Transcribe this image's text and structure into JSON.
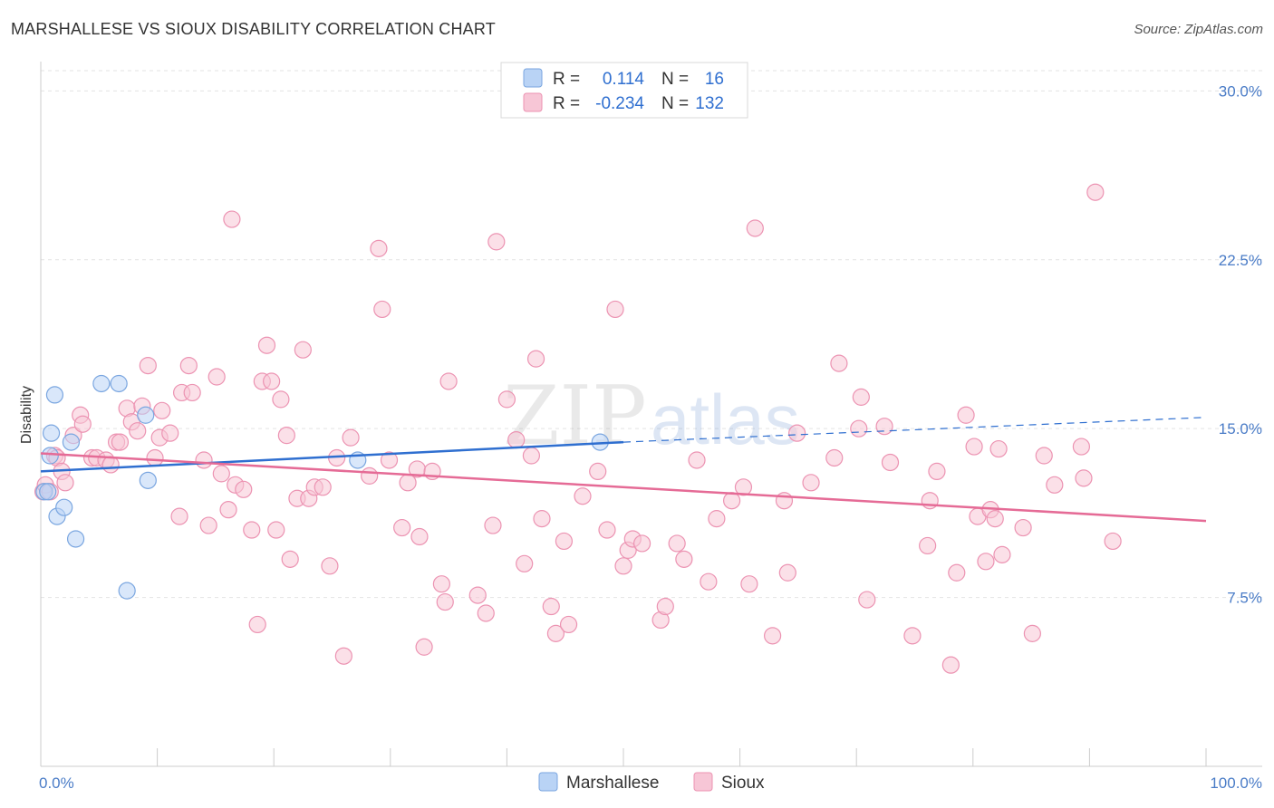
{
  "title": "MARSHALLESE VS SIOUX DISABILITY CORRELATION CHART",
  "source": "Source: ZipAtlas.com",
  "watermark": {
    "zip": "ZIP",
    "atlas": "atlas"
  },
  "colors": {
    "marshallese_fill": "#b9d3f5",
    "marshallese_stroke": "#7aa6e0",
    "marshallese_line": "#2f6fd0",
    "sioux_fill": "#f7c6d6",
    "sioux_stroke": "#ec93b2",
    "sioux_line": "#e56b96",
    "tick_label": "#4a7cc7"
  },
  "legend": {
    "rows": [
      {
        "r_label": "R =",
        "r_value": "0.114",
        "n_label": "N =",
        "n_value": "16"
      },
      {
        "r_label": "R =",
        "r_value": "-0.234",
        "n_label": "N =",
        "n_value": "132"
      }
    ]
  },
  "chart_data": {
    "type": "scatter",
    "ylabel": "Disability",
    "xlim": [
      0,
      100
    ],
    "ylim": [
      0,
      30.9
    ],
    "x_ticks": [
      {
        "value": 0,
        "label": "0.0%"
      },
      {
        "value": 100,
        "label": "100.0%"
      }
    ],
    "y_ticks": [
      {
        "value": 7.5,
        "label": "7.5%"
      },
      {
        "value": 15,
        "label": "15.0%"
      },
      {
        "value": 22.5,
        "label": "22.5%"
      },
      {
        "value": 30,
        "label": "30.0%"
      }
    ],
    "grid": true,
    "legend_position": "top-center",
    "series": [
      {
        "name": "Marshallese",
        "r": 0.114,
        "n": 16,
        "points": [
          [
            0.3,
            12.2
          ],
          [
            0.6,
            12.2
          ],
          [
            0.8,
            13.8
          ],
          [
            0.9,
            14.8
          ],
          [
            1.2,
            16.5
          ],
          [
            1.4,
            11.1
          ],
          [
            2.0,
            11.5
          ],
          [
            2.6,
            14.4
          ],
          [
            3.0,
            10.1
          ],
          [
            5.2,
            17.0
          ],
          [
            6.7,
            17.0
          ],
          [
            7.4,
            7.8
          ],
          [
            9.0,
            15.6
          ],
          [
            9.2,
            12.7
          ],
          [
            27.2,
            13.6
          ],
          [
            48.0,
            14.4
          ]
        ],
        "trend": {
          "x0": 0,
          "y0": 13.1,
          "x1": 50,
          "y1": 14.4,
          "dashed_to_x": 100,
          "dashed_to_y": 15.5
        }
      },
      {
        "name": "Sioux",
        "r": -0.234,
        "n": 132,
        "points": [
          [
            0.2,
            12.2
          ],
          [
            0.4,
            12.5
          ],
          [
            0.8,
            12.2
          ],
          [
            1.2,
            13.8
          ],
          [
            1.4,
            13.7
          ],
          [
            1.8,
            13.1
          ],
          [
            2.1,
            12.6
          ],
          [
            2.8,
            14.7
          ],
          [
            3.4,
            15.6
          ],
          [
            3.6,
            15.2
          ],
          [
            4.4,
            13.7
          ],
          [
            4.8,
            13.7
          ],
          [
            5.6,
            13.6
          ],
          [
            6.0,
            13.4
          ],
          [
            6.5,
            14.4
          ],
          [
            6.8,
            14.4
          ],
          [
            7.4,
            15.9
          ],
          [
            7.8,
            15.3
          ],
          [
            8.3,
            14.9
          ],
          [
            8.7,
            16.0
          ],
          [
            9.2,
            17.8
          ],
          [
            9.8,
            13.7
          ],
          [
            10.2,
            14.6
          ],
          [
            10.4,
            15.8
          ],
          [
            11.1,
            14.8
          ],
          [
            11.9,
            11.1
          ],
          [
            12.1,
            16.6
          ],
          [
            12.7,
            17.8
          ],
          [
            13.0,
            16.6
          ],
          [
            14.0,
            13.6
          ],
          [
            14.4,
            10.7
          ],
          [
            15.1,
            17.3
          ],
          [
            15.5,
            13.0
          ],
          [
            16.1,
            11.4
          ],
          [
            16.4,
            24.3
          ],
          [
            16.7,
            12.5
          ],
          [
            17.4,
            12.3
          ],
          [
            18.1,
            10.5
          ],
          [
            18.6,
            6.3
          ],
          [
            19.0,
            17.1
          ],
          [
            19.4,
            18.7
          ],
          [
            19.8,
            17.1
          ],
          [
            20.2,
            10.5
          ],
          [
            20.6,
            16.3
          ],
          [
            21.1,
            14.7
          ],
          [
            21.4,
            9.2
          ],
          [
            22.0,
            11.9
          ],
          [
            22.5,
            18.5
          ],
          [
            23.0,
            11.9
          ],
          [
            23.5,
            12.4
          ],
          [
            24.2,
            12.4
          ],
          [
            24.8,
            8.9
          ],
          [
            25.4,
            13.7
          ],
          [
            26.0,
            4.9
          ],
          [
            26.6,
            14.6
          ],
          [
            28.2,
            12.9
          ],
          [
            29.0,
            23.0
          ],
          [
            29.3,
            20.3
          ],
          [
            29.9,
            13.6
          ],
          [
            31.0,
            10.6
          ],
          [
            31.5,
            12.6
          ],
          [
            32.3,
            13.2
          ],
          [
            32.5,
            10.2
          ],
          [
            32.9,
            5.3
          ],
          [
            33.6,
            13.1
          ],
          [
            34.4,
            8.1
          ],
          [
            35.0,
            17.1
          ],
          [
            34.7,
            7.3
          ],
          [
            37.5,
            7.6
          ],
          [
            38.2,
            6.8
          ],
          [
            38.8,
            10.7
          ],
          [
            39.1,
            23.3
          ],
          [
            40.0,
            16.3
          ],
          [
            40.8,
            14.5
          ],
          [
            41.5,
            9.0
          ],
          [
            42.1,
            13.8
          ],
          [
            42.5,
            18.1
          ],
          [
            43.0,
            11.0
          ],
          [
            43.8,
            7.1
          ],
          [
            44.2,
            5.9
          ],
          [
            44.9,
            10.0
          ],
          [
            45.3,
            6.3
          ],
          [
            46.5,
            12.0
          ],
          [
            47.8,
            13.1
          ],
          [
            48.6,
            10.5
          ],
          [
            49.3,
            20.3
          ],
          [
            50.0,
            8.9
          ],
          [
            50.4,
            9.6
          ],
          [
            50.8,
            10.1
          ],
          [
            51.6,
            9.9
          ],
          [
            53.2,
            6.5
          ],
          [
            53.6,
            7.1
          ],
          [
            54.6,
            9.9
          ],
          [
            55.2,
            9.2
          ],
          [
            56.3,
            13.6
          ],
          [
            57.3,
            8.2
          ],
          [
            58.0,
            11.0
          ],
          [
            59.3,
            11.8
          ],
          [
            60.3,
            12.4
          ],
          [
            60.8,
            8.1
          ],
          [
            61.3,
            23.9
          ],
          [
            62.8,
            5.8
          ],
          [
            63.8,
            11.8
          ],
          [
            64.1,
            8.6
          ],
          [
            64.9,
            14.8
          ],
          [
            66.1,
            12.6
          ],
          [
            68.1,
            13.7
          ],
          [
            68.5,
            17.9
          ],
          [
            70.2,
            15.0
          ],
          [
            70.4,
            16.4
          ],
          [
            70.9,
            7.4
          ],
          [
            72.4,
            15.1
          ],
          [
            72.9,
            13.5
          ],
          [
            74.8,
            5.8
          ],
          [
            76.1,
            9.8
          ],
          [
            76.3,
            11.8
          ],
          [
            76.9,
            13.1
          ],
          [
            78.1,
            4.5
          ],
          [
            78.6,
            8.6
          ],
          [
            79.4,
            15.6
          ],
          [
            80.1,
            14.2
          ],
          [
            80.4,
            11.1
          ],
          [
            81.1,
            9.1
          ],
          [
            81.5,
            11.4
          ],
          [
            81.9,
            11.0
          ],
          [
            82.2,
            14.1
          ],
          [
            82.5,
            9.4
          ],
          [
            84.3,
            10.6
          ],
          [
            85.1,
            5.9
          ],
          [
            86.1,
            13.8
          ],
          [
            87.0,
            12.5
          ],
          [
            89.3,
            14.2
          ],
          [
            89.5,
            12.8
          ],
          [
            90.5,
            25.5
          ],
          [
            92.0,
            10.0
          ]
        ],
        "trend": {
          "x0": 0,
          "y0": 13.9,
          "x1": 100,
          "y1": 10.9
        }
      }
    ]
  },
  "bottom_legend": [
    {
      "name": "Marshallese"
    },
    {
      "name": "Sioux"
    }
  ]
}
